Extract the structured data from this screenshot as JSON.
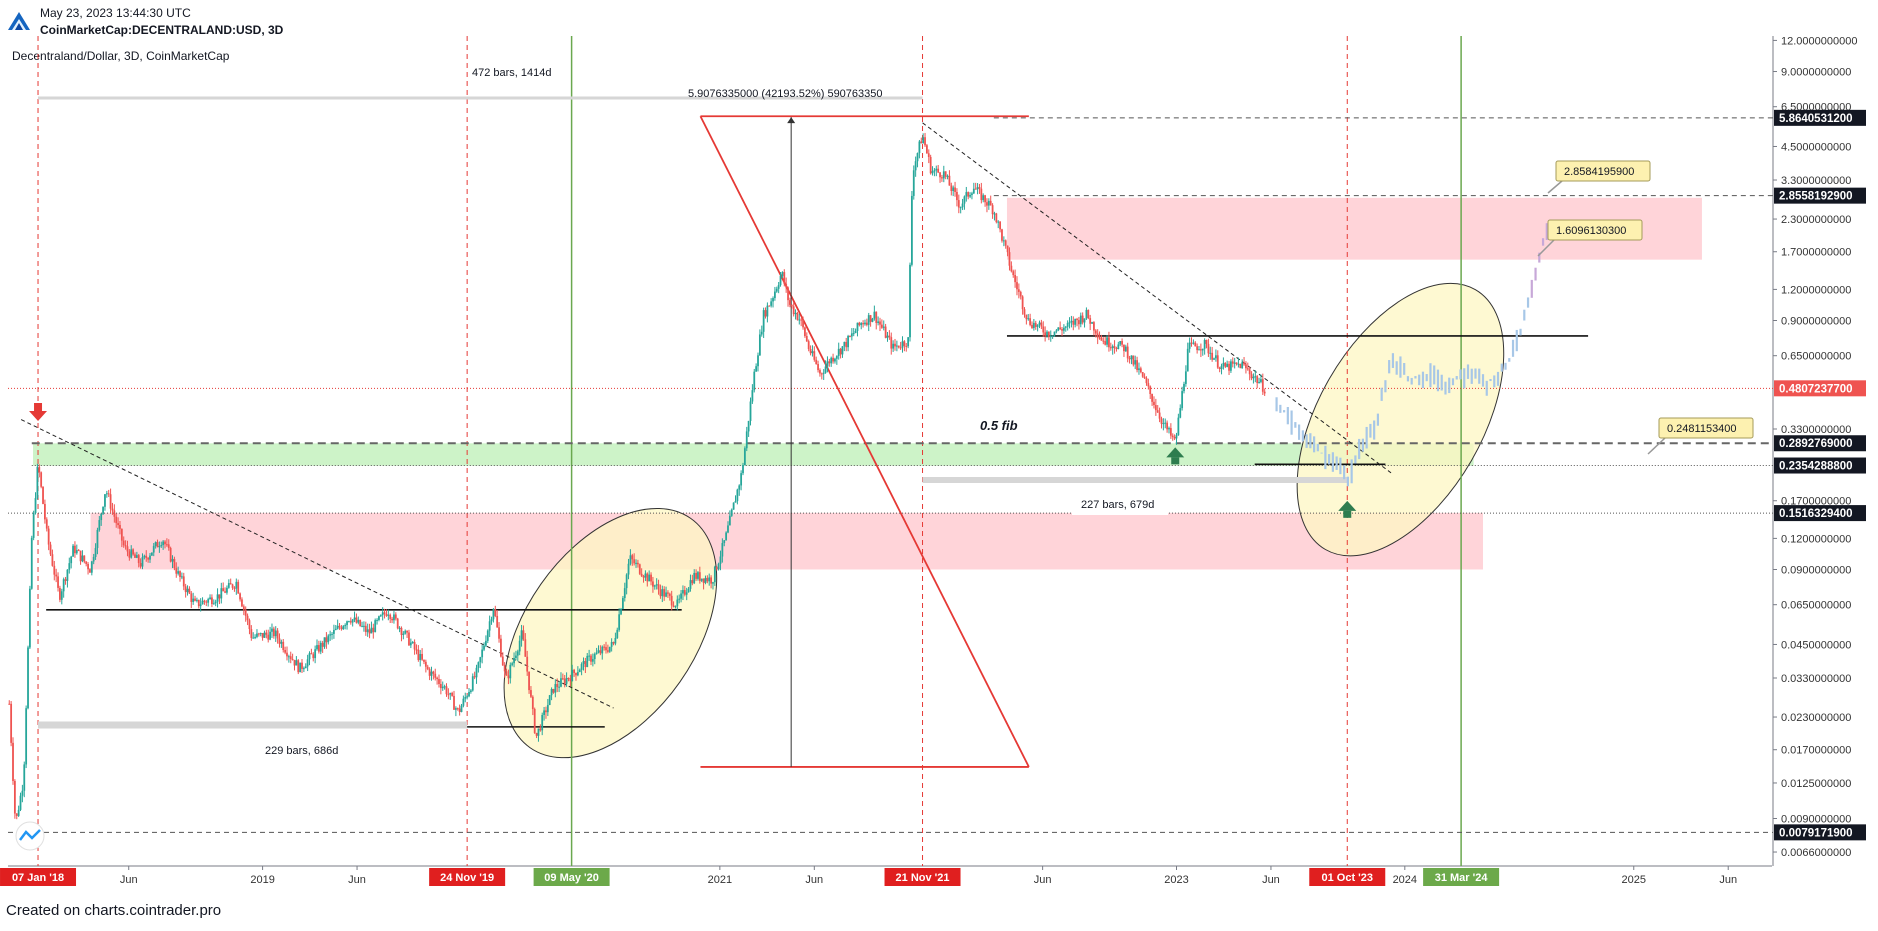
{
  "header": {
    "timestamp": "May 23, 2023 13:44:30 UTC",
    "symbol": "CoinMarketCap:DECENTRALAND:USD, 3D"
  },
  "footer": {
    "credit": "Created on charts.cointrader.pro"
  },
  "colors": {
    "accent_red": "#e53935",
    "accent_green": "#6aa84f",
    "candle_up": "#26a69a",
    "candle_down": "#ef5350",
    "zone_red": "#ffcdd2",
    "zone_green": "#c8f2c2",
    "ellipse_fill": "#fdf7c3",
    "projection": "#a7c7e7"
  },
  "chart_data": {
    "type": "candlestick",
    "title": "Decentraland/Dollar, 3D, CoinMarketCap",
    "y_scale": "log",
    "ylim": [
      0.0058,
      12.5
    ],
    "xlim": [
      "2017-11-20",
      "2025-08-10"
    ],
    "y_ticks": [
      "12.0000000000",
      "9.0000000000",
      "6.5000000000",
      "4.5000000000",
      "3.3000000000",
      "2.3000000000",
      "1.7000000000",
      "1.2000000000",
      "0.9000000000",
      "0.6500000000",
      "0.3300000000",
      "0.1700000000",
      "0.1200000000",
      "0.0900000000",
      "0.0650000000",
      "0.0450000000",
      "0.0330000000",
      "0.0230000000",
      "0.0170000000",
      "0.0125000000",
      "0.0090000000",
      "0.0066000000"
    ],
    "y_tick_values": [
      12,
      9,
      6.5,
      4.5,
      3.3,
      2.3,
      1.7,
      1.2,
      0.9,
      0.65,
      0.33,
      0.17,
      0.12,
      0.09,
      0.065,
      0.045,
      0.033,
      0.023,
      0.017,
      0.0125,
      0.009,
      0.0066
    ],
    "x_ticks": [
      {
        "label": "Jun",
        "date": "2018-06-01"
      },
      {
        "label": "2019",
        "date": "2019-01-01"
      },
      {
        "label": "Jun",
        "date": "2019-06-01"
      },
      {
        "label": "2021",
        "date": "2021-01-01"
      },
      {
        "label": "Jun",
        "date": "2021-06-01"
      },
      {
        "label": "Jun",
        "date": "2022-06-01"
      },
      {
        "label": "2023",
        "date": "2023-01-01"
      },
      {
        "label": "Jun",
        "date": "2023-06-01"
      },
      {
        "label": "2024",
        "date": "2024-01-01"
      },
      {
        "label": "2025",
        "date": "2025-01-01"
      },
      {
        "label": "Jun",
        "date": "2025-06-01"
      }
    ],
    "date_markers": [
      {
        "label": "07 Jan '18",
        "date": "2018-01-07",
        "color": "red"
      },
      {
        "label": "24 Nov '19",
        "date": "2019-11-24",
        "color": "red"
      },
      {
        "label": "09 May '20",
        "date": "2020-05-09",
        "color": "green"
      },
      {
        "label": "21 Nov '21",
        "date": "2021-11-21",
        "color": "red"
      },
      {
        "label": "01 Oct '23",
        "date": "2023-10-01",
        "color": "red"
      },
      {
        "label": "31 Mar '24",
        "date": "2024-03-31",
        "color": "green"
      }
    ],
    "price_labels": [
      {
        "text": "5.8640531200",
        "value": 5.86405312,
        "style": "dark"
      },
      {
        "text": "2.8558192900",
        "value": 2.85581929,
        "style": "dark"
      },
      {
        "text": "0.4807237700",
        "value": 0.48072377,
        "style": "red"
      },
      {
        "text": "0.2892769000",
        "value": 0.2892769,
        "style": "dark"
      },
      {
        "text": "0.2354288800",
        "value": 0.23542888,
        "style": "dark"
      },
      {
        "text": "0.1516329400",
        "value": 0.15163294,
        "style": "dark"
      },
      {
        "text": "0.0079171900",
        "value": 0.00791719,
        "style": "dark"
      }
    ],
    "horizontal_lines": [
      {
        "value": 5.86405312,
        "style": "dashed"
      },
      {
        "value": 2.85581929,
        "style": "dashed"
      },
      {
        "value": 0.48072377,
        "style": "dotted-red"
      },
      {
        "value": 0.2892769,
        "style": "dashed-thick"
      },
      {
        "value": 0.23542888,
        "style": "dotted"
      },
      {
        "value": 0.15163294,
        "style": "dotted"
      },
      {
        "value": 0.00791719,
        "style": "dashed"
      }
    ],
    "callouts": [
      {
        "text": "2.8584195900",
        "value": 2.85841959
      },
      {
        "text": "1.6096130300",
        "value": 1.60961303
      },
      {
        "text": "0.2481153400",
        "value": 0.24811534
      }
    ],
    "annotations": [
      {
        "text": "472 bars, 1414d"
      },
      {
        "text": "5.9076335000 (42193.52%) 590763350"
      },
      {
        "text": "0.5  fib"
      },
      {
        "text": "227 bars, 679d"
      },
      {
        "text": "229 bars, 686d"
      }
    ],
    "zones": [
      {
        "from": "2018-04-01",
        "to": "2024-05-05",
        "low": 0.09,
        "high": 0.152,
        "color": "red"
      },
      {
        "from": "2022-04-05",
        "to": "2025-04-20",
        "low": 1.58,
        "high": 2.8,
        "color": "red"
      },
      {
        "from": "2017-12-30",
        "to": "2024-04-20",
        "low": 0.235,
        "high": 0.289,
        "color": "green"
      }
    ],
    "levels": [
      {
        "from": "2018-01-20",
        "to": "2020-11-01",
        "value": 0.062
      },
      {
        "from": "2022-04-05",
        "to": "2024-10-20",
        "value": 0.78
      },
      {
        "from": "2023-05-06",
        "to": "2023-12-01",
        "value": 0.238
      },
      {
        "from": "2019-10-05",
        "to": "2020-07-01",
        "value": 0.021
      }
    ],
    "trendlines": [
      {
        "from": {
          "date": "2017-12-11",
          "value": 0.36
        },
        "to": {
          "date": "2020-07-15",
          "value": 0.025
        }
      },
      {
        "from": {
          "date": "2021-11-21",
          "value": 5.6
        },
        "to": {
          "date": "2023-12-10",
          "value": 0.22
        }
      }
    ],
    "ohlc_points": [
      [
        "2017-11-22",
        0.026
      ],
      [
        "2017-12-02",
        0.0085
      ],
      [
        "2017-12-15",
        0.013
      ],
      [
        "2017-12-28",
        0.12
      ],
      [
        "2018-01-07",
        0.24
      ],
      [
        "2018-01-22",
        0.12
      ],
      [
        "2018-02-10",
        0.07
      ],
      [
        "2018-03-05",
        0.11
      ],
      [
        "2018-04-01",
        0.09
      ],
      [
        "2018-04-25",
        0.19
      ],
      [
        "2018-05-25",
        0.11
      ],
      [
        "2018-06-20",
        0.095
      ],
      [
        "2018-07-25",
        0.12
      ],
      [
        "2018-08-20",
        0.085
      ],
      [
        "2018-09-15",
        0.065
      ],
      [
        "2018-10-20",
        0.07
      ],
      [
        "2018-11-20",
        0.08
      ],
      [
        "2018-12-15",
        0.048
      ],
      [
        "2019-01-20",
        0.05
      ],
      [
        "2019-03-01",
        0.036
      ],
      [
        "2019-04-10",
        0.046
      ],
      [
        "2019-05-20",
        0.058
      ],
      [
        "2019-06-20",
        0.05
      ],
      [
        "2019-07-20",
        0.062
      ],
      [
        "2019-08-20",
        0.048
      ],
      [
        "2019-09-20",
        0.036
      ],
      [
        "2019-10-20",
        0.03
      ],
      [
        "2019-11-10",
        0.024
      ],
      [
        "2019-12-10",
        0.035
      ],
      [
        "2020-01-05",
        0.064
      ],
      [
        "2020-01-25",
        0.032
      ],
      [
        "2020-02-20",
        0.05
      ],
      [
        "2020-03-13",
        0.019
      ],
      [
        "2020-04-10",
        0.03
      ],
      [
        "2020-05-09",
        0.034
      ],
      [
        "2020-06-10",
        0.04
      ],
      [
        "2020-07-15",
        0.045
      ],
      [
        "2020-08-10",
        0.1
      ],
      [
        "2020-08-30",
        0.088
      ],
      [
        "2020-09-25",
        0.075
      ],
      [
        "2020-10-25",
        0.065
      ],
      [
        "2020-11-20",
        0.085
      ],
      [
        "2020-12-20",
        0.082
      ],
      [
        "2021-01-10",
        0.12
      ],
      [
        "2021-02-05",
        0.22
      ],
      [
        "2021-02-25",
        0.55
      ],
      [
        "2021-03-12",
        0.95
      ],
      [
        "2021-03-25",
        1.1
      ],
      [
        "2021-04-10",
        1.4
      ],
      [
        "2021-04-22",
        1.05
      ],
      [
        "2021-05-10",
        0.9
      ],
      [
        "2021-05-23",
        0.7
      ],
      [
        "2021-06-10",
        0.55
      ],
      [
        "2021-06-25",
        0.62
      ],
      [
        "2021-07-20",
        0.72
      ],
      [
        "2021-08-15",
        0.88
      ],
      [
        "2021-09-05",
        0.95
      ],
      [
        "2021-10-05",
        0.7
      ],
      [
        "2021-10-29",
        0.75
      ],
      [
        "2021-11-05",
        3.6
      ],
      [
        "2021-11-21",
        5.0
      ],
      [
        "2021-12-05",
        3.6
      ],
      [
        "2021-12-25",
        3.5
      ],
      [
        "2022-01-20",
        2.6
      ],
      [
        "2022-02-10",
        3.1
      ],
      [
        "2022-03-15",
        2.5
      ],
      [
        "2022-04-01",
        1.8
      ],
      [
        "2022-04-15",
        1.35
      ],
      [
        "2022-05-09",
        0.9
      ],
      [
        "2022-06-10",
        0.8
      ],
      [
        "2022-07-10",
        0.85
      ],
      [
        "2022-08-10",
        0.95
      ],
      [
        "2022-09-05",
        0.75
      ],
      [
        "2022-10-10",
        0.7
      ],
      [
        "2022-11-10",
        0.52
      ],
      [
        "2022-12-10",
        0.35
      ],
      [
        "2022-12-30",
        0.29
      ],
      [
        "2023-01-08",
        0.42
      ],
      [
        "2023-01-20",
        0.7
      ],
      [
        "2023-02-15",
        0.72
      ],
      [
        "2023-03-15",
        0.58
      ],
      [
        "2023-04-15",
        0.6
      ],
      [
        "2023-05-10",
        0.52
      ],
      [
        "2023-05-22",
        0.48
      ]
    ],
    "projection_points": [
      [
        "2023-06-10",
        0.42
      ],
      [
        "2023-07-10",
        0.34
      ],
      [
        "2023-08-15",
        0.27
      ],
      [
        "2023-09-15",
        0.24
      ],
      [
        "2023-10-01",
        0.2
      ],
      [
        "2023-10-20",
        0.28
      ],
      [
        "2023-11-15",
        0.34
      ],
      [
        "2023-12-10",
        0.65
      ],
      [
        "2024-01-10",
        0.52
      ],
      [
        "2024-02-10",
        0.55
      ],
      [
        "2024-03-10",
        0.5
      ],
      [
        "2024-04-10",
        0.55
      ],
      [
        "2024-05-10",
        0.5
      ],
      [
        "2024-06-10",
        0.58
      ],
      [
        "2024-07-10",
        0.9
      ],
      [
        "2024-07-25",
        1.3
      ],
      [
        "2024-08-05",
        1.75
      ],
      [
        "2024-08-15",
        2.1
      ]
    ]
  }
}
